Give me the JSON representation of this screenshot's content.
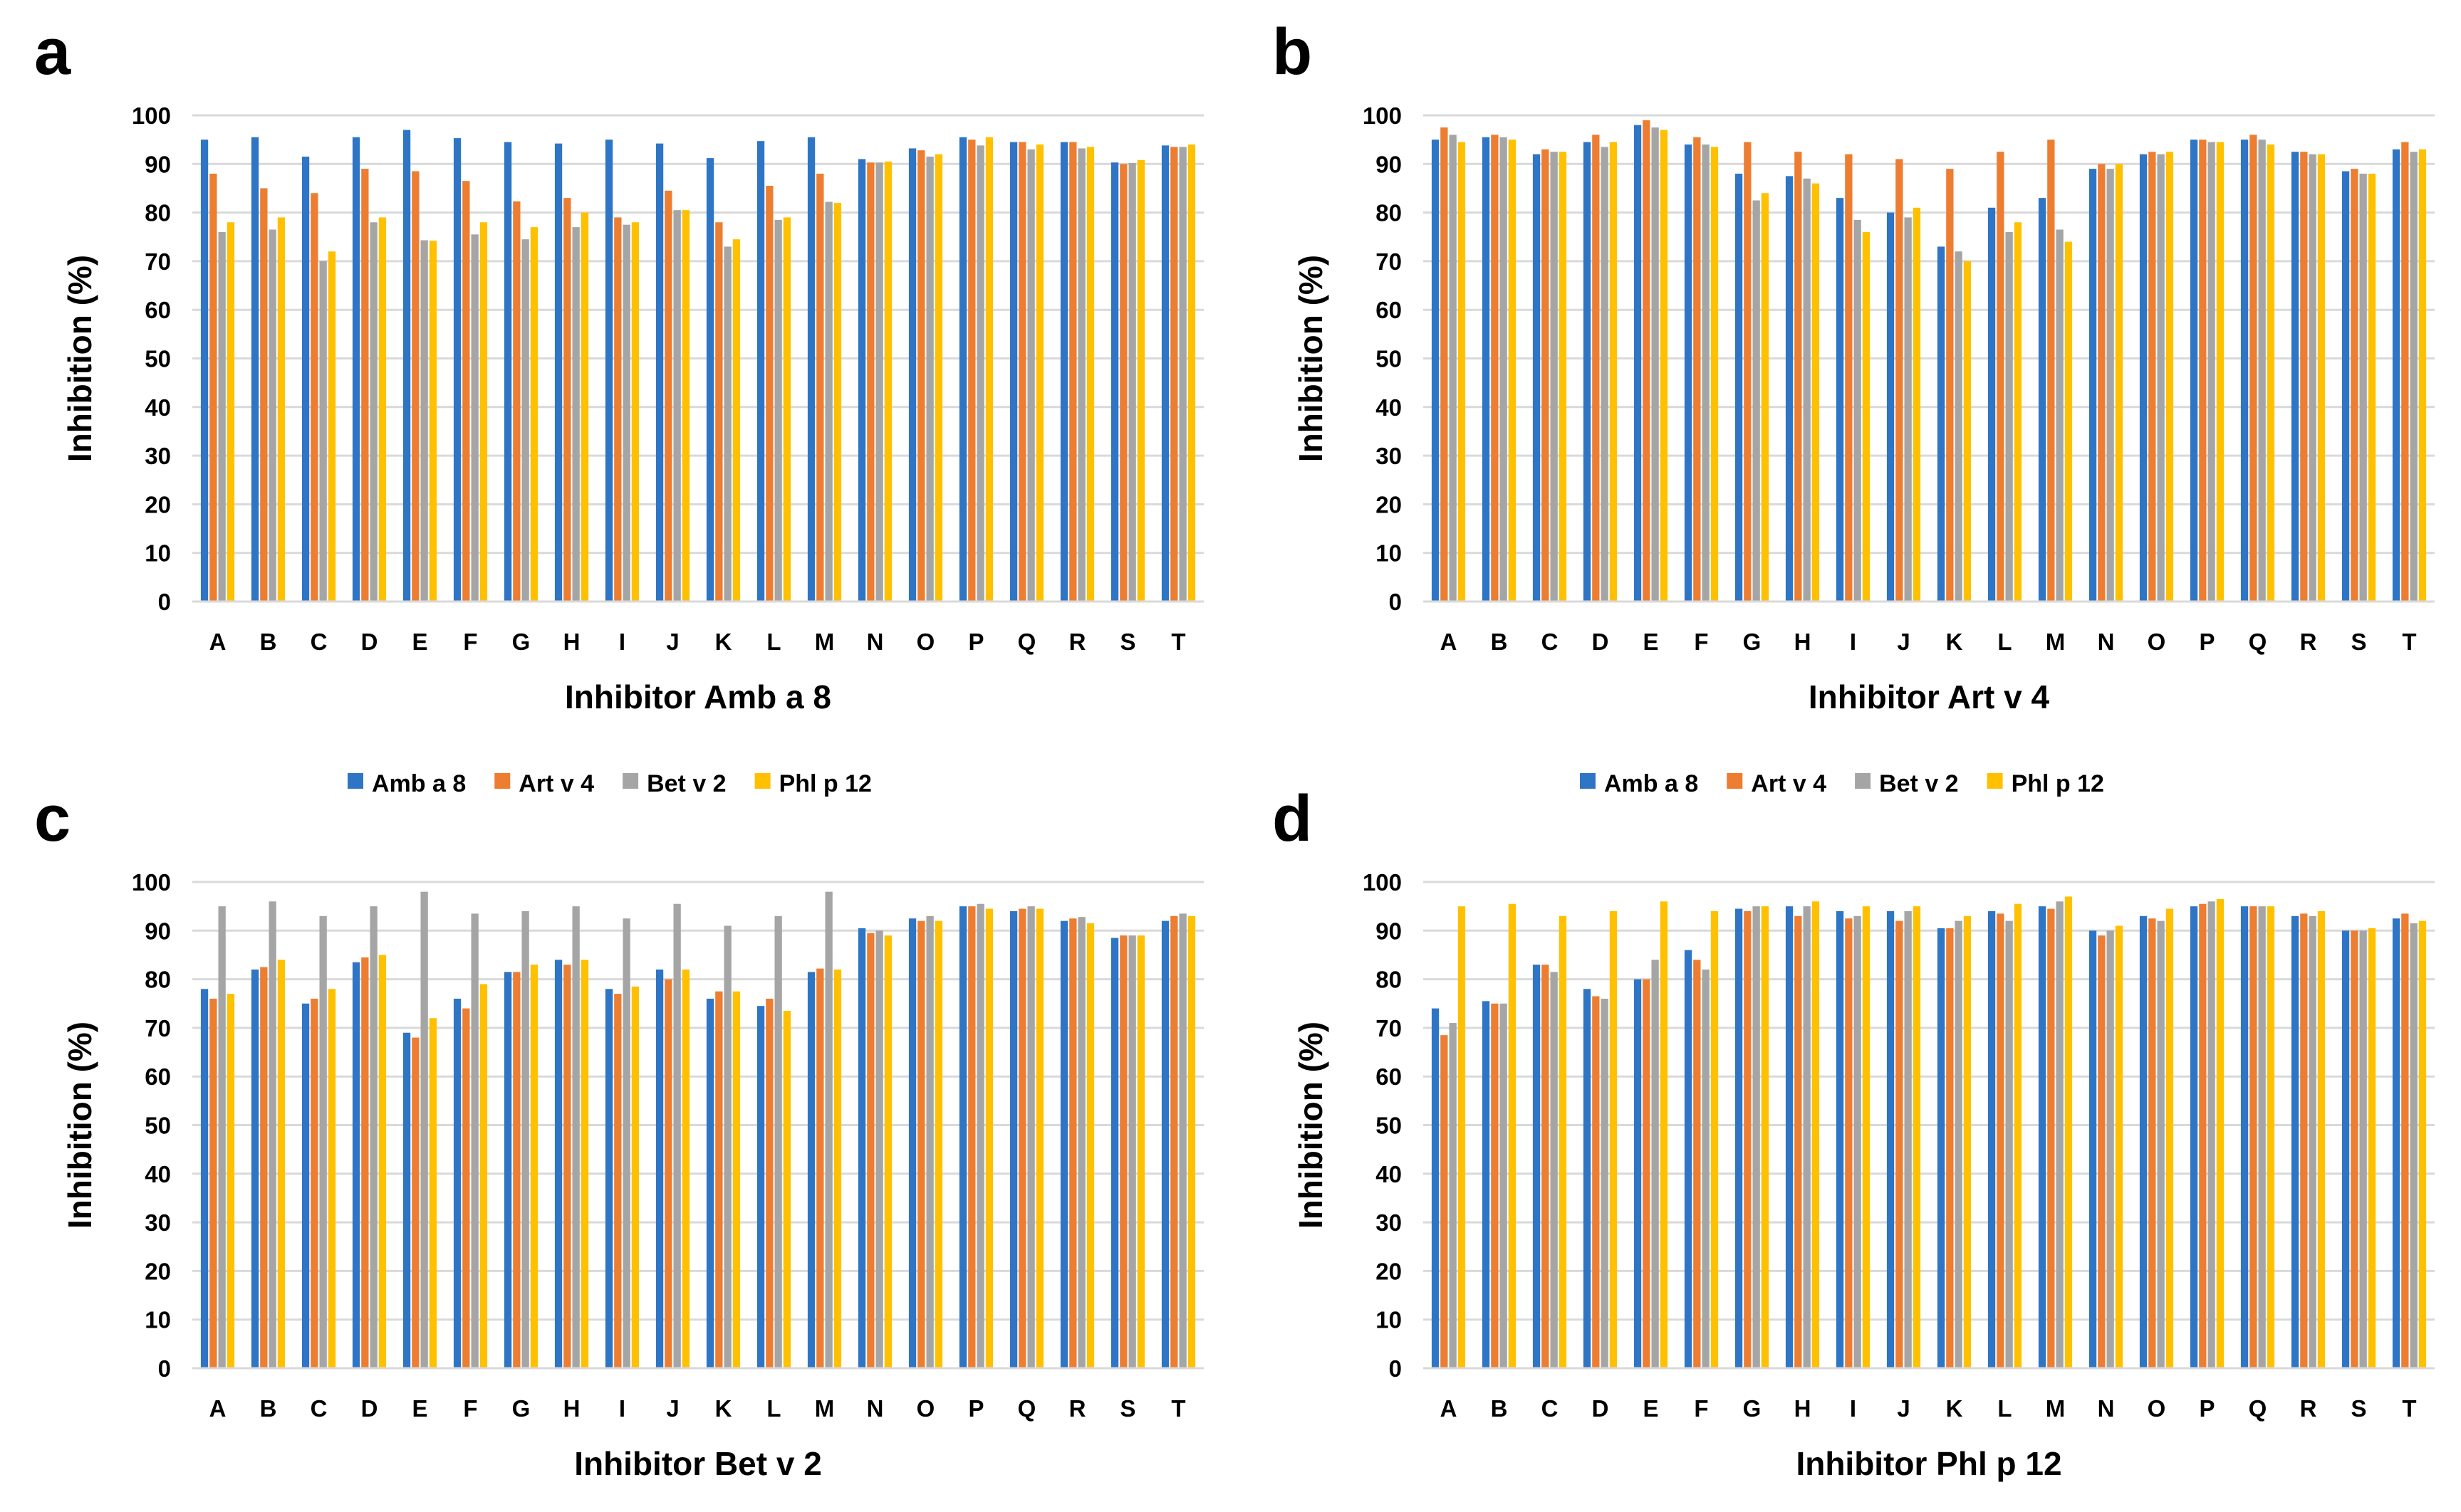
{
  "chart_data": [
    {
      "panel": "a",
      "type": "bar",
      "xlabel": "Inhibitor Amb a 8",
      "ylabel": "Inhibition (%)",
      "ylim": [
        0,
        100
      ],
      "yticks": [
        0,
        10,
        20,
        30,
        40,
        50,
        60,
        70,
        80,
        90,
        100
      ],
      "categories": [
        "A",
        "B",
        "C",
        "D",
        "E",
        "F",
        "G",
        "H",
        "I",
        "J",
        "K",
        "L",
        "M",
        "N",
        "O",
        "P",
        "Q",
        "R",
        "S",
        "T"
      ],
      "series": [
        {
          "name": "Amb a 8",
          "color": "#2e75c6",
          "values": [
            95,
            95.5,
            91.5,
            95.5,
            97,
            95.3,
            94.5,
            94.2,
            95,
            94.2,
            91.2,
            94.7,
            95.5,
            91,
            93.2,
            95.5,
            94.5,
            94.5,
            90.3,
            93.8
          ]
        },
        {
          "name": "Art v 4",
          "color": "#ed7d31",
          "values": [
            88,
            85,
            84,
            89,
            88.5,
            86.5,
            82.3,
            83,
            79,
            84.5,
            78,
            85.5,
            88,
            90.3,
            92.8,
            95,
            94.5,
            94.5,
            90,
            93.5
          ]
        },
        {
          "name": "Bet v 2",
          "color": "#a5a5a5",
          "values": [
            76,
            76.5,
            70,
            78,
            74.3,
            75.5,
            74.5,
            77,
            77.5,
            80.5,
            73,
            78.5,
            82.2,
            90.3,
            91.5,
            93.8,
            93,
            93.2,
            90.2,
            93.5
          ]
        },
        {
          "name": "Phl p 12",
          "color": "#ffc000",
          "values": [
            78,
            79,
            72,
            79,
            74.2,
            78,
            77,
            80,
            78,
            80.5,
            74.5,
            79,
            82,
            90.5,
            92,
            95.5,
            94,
            93.5,
            90.8,
            94
          ]
        }
      ]
    },
    {
      "panel": "b",
      "type": "bar",
      "xlabel": "Inhibitor Art v 4",
      "ylabel": "Inhibition (%)",
      "ylim": [
        0,
        100
      ],
      "yticks": [
        0,
        10,
        20,
        30,
        40,
        50,
        60,
        70,
        80,
        90,
        100
      ],
      "categories": [
        "A",
        "B",
        "C",
        "D",
        "E",
        "F",
        "G",
        "H",
        "I",
        "J",
        "K",
        "L",
        "M",
        "N",
        "O",
        "P",
        "Q",
        "R",
        "S",
        "T"
      ],
      "series": [
        {
          "name": "Amb a 8",
          "color": "#2e75c6",
          "values": [
            95,
            95.5,
            92,
            94.5,
            98,
            94,
            88,
            87.5,
            83,
            80,
            73,
            81,
            83,
            89,
            92,
            95,
            95,
            92.5,
            88.5,
            93
          ]
        },
        {
          "name": "Art v 4",
          "color": "#ed7d31",
          "values": [
            97.5,
            96,
            93,
            96,
            99,
            95.5,
            94.5,
            92.5,
            92,
            91,
            89,
            92.5,
            95,
            90,
            92.5,
            95,
            96,
            92.5,
            89,
            94.5
          ]
        },
        {
          "name": "Bet v 2",
          "color": "#a5a5a5",
          "values": [
            96,
            95.5,
            92.5,
            93.5,
            97.5,
            94,
            82.5,
            87,
            78.5,
            79,
            72,
            76,
            76.5,
            89,
            92,
            94.5,
            95,
            92,
            88,
            92.5
          ]
        },
        {
          "name": "Phl p 12",
          "color": "#ffc000",
          "values": [
            94.5,
            95,
            92.5,
            94.5,
            97,
            93.5,
            84,
            86,
            76,
            81,
            70,
            78,
            74,
            90,
            92.5,
            94.5,
            94,
            92,
            88,
            93
          ]
        }
      ]
    },
    {
      "panel": "c",
      "type": "bar",
      "xlabel": "Inhibitor Bet v 2",
      "ylabel": "Inhibition (%)",
      "ylim": [
        0,
        100
      ],
      "yticks": [
        0,
        10,
        20,
        30,
        40,
        50,
        60,
        70,
        80,
        90,
        100
      ],
      "categories": [
        "A",
        "B",
        "C",
        "D",
        "E",
        "F",
        "G",
        "H",
        "I",
        "J",
        "K",
        "L",
        "M",
        "N",
        "O",
        "P",
        "Q",
        "R",
        "S",
        "T"
      ],
      "series": [
        {
          "name": "Amb a 8",
          "color": "#2e75c6",
          "values": [
            78,
            82,
            75,
            83.5,
            69,
            76,
            81.5,
            84,
            78,
            82,
            76,
            74.5,
            81.5,
            90.5,
            92.5,
            95,
            94,
            92,
            88.5,
            92
          ]
        },
        {
          "name": "Art v 4",
          "color": "#ed7d31",
          "values": [
            76,
            82.5,
            76,
            84.5,
            68,
            74,
            81.5,
            83,
            77,
            80,
            77.5,
            76,
            82.2,
            89.5,
            92,
            95,
            94.5,
            92.5,
            89,
            93
          ]
        },
        {
          "name": "Bet v 2",
          "color": "#a5a5a5",
          "values": [
            95,
            96,
            93,
            95,
            98,
            93.5,
            94,
            95,
            92.5,
            95.5,
            91,
            93,
            98,
            90,
            93,
            95.5,
            95,
            92.8,
            89,
            93.5
          ]
        },
        {
          "name": "Phl p 12",
          "color": "#ffc000",
          "values": [
            77,
            84,
            78,
            85,
            72,
            79,
            83,
            84,
            78.5,
            82,
            77.5,
            73.5,
            82,
            89,
            92,
            94.5,
            94.5,
            91.5,
            89,
            93
          ]
        }
      ]
    },
    {
      "panel": "d",
      "type": "bar",
      "xlabel": "Inhibitor Phl p 12",
      "ylabel": "Inhibition (%)",
      "ylim": [
        0,
        100
      ],
      "yticks": [
        0,
        10,
        20,
        30,
        40,
        50,
        60,
        70,
        80,
        90,
        100
      ],
      "categories": [
        "A",
        "B",
        "C",
        "D",
        "E",
        "F",
        "G",
        "H",
        "I",
        "J",
        "K",
        "L",
        "M",
        "N",
        "O",
        "P",
        "Q",
        "R",
        "S",
        "T"
      ],
      "series": [
        {
          "name": "Amb a 8",
          "color": "#2e75c6",
          "values": [
            74,
            75.5,
            83,
            78,
            80,
            86,
            94.5,
            95,
            94,
            94,
            90.5,
            94,
            95,
            90,
            93,
            95,
            95,
            93,
            90,
            92.5
          ]
        },
        {
          "name": "Art v 4",
          "color": "#ed7d31",
          "values": [
            68.5,
            75,
            83,
            76.5,
            80,
            84,
            94,
            93,
            92.5,
            92,
            90.5,
            93.5,
            94.5,
            89,
            92.5,
            95.5,
            95,
            93.5,
            90,
            93.5
          ]
        },
        {
          "name": "Bet v 2",
          "color": "#a5a5a5",
          "values": [
            71,
            75,
            81.5,
            76,
            84,
            82,
            95,
            95,
            93,
            94,
            92,
            92,
            96,
            90,
            92,
            96,
            95,
            93,
            90,
            91.5
          ]
        },
        {
          "name": "Phl p 12",
          "color": "#ffc000",
          "values": [
            95,
            95.5,
            93,
            94,
            96,
            94,
            95,
            96,
            95,
            95,
            93,
            95.5,
            97,
            91,
            94.5,
            96.5,
            95,
            94,
            90.5,
            92
          ]
        }
      ]
    }
  ],
  "legends": [
    {
      "items": [
        "Amb a 8",
        "Art v 4",
        "Bet v 2",
        "Phl p 12"
      ]
    },
    {
      "items": [
        "Amb a 8",
        "Art v 4",
        "Bet v 2",
        "Phl p 12"
      ]
    }
  ]
}
